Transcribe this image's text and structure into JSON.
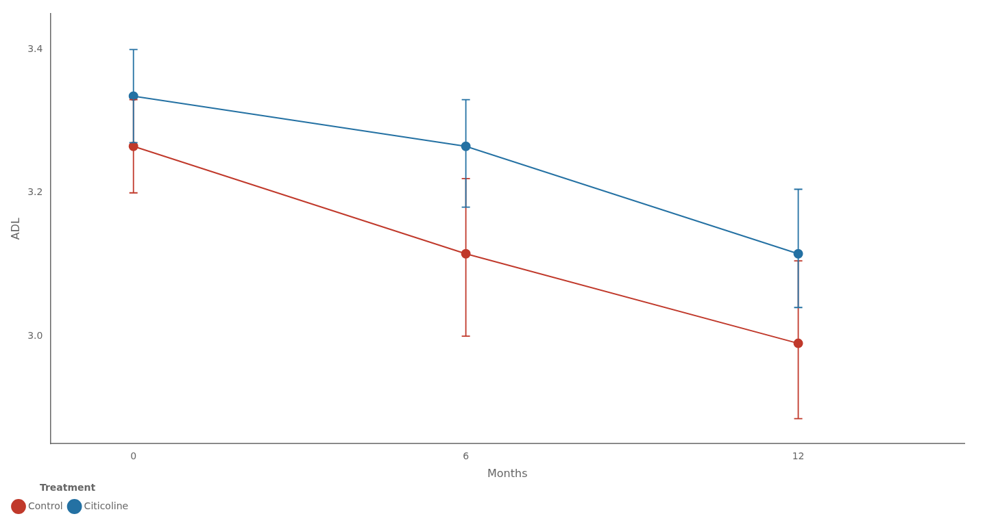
{
  "chart_data": {
    "type": "line",
    "xlabel": "Months",
    "ylabel": "ADL",
    "x": [
      0,
      6,
      12
    ],
    "series": [
      {
        "name": "Control",
        "color": "#C0392B",
        "values": [
          3.265,
          3.115,
          2.99
        ],
        "error_upper": [
          0.065,
          0.105,
          0.115
        ],
        "error_lower": [
          0.065,
          0.115,
          0.105
        ]
      },
      {
        "name": "Citicoline",
        "color": "#2471A3",
        "values": [
          3.335,
          3.265,
          3.115
        ],
        "error_upper": [
          0.065,
          0.065,
          0.09
        ],
        "error_lower": [
          0.065,
          0.085,
          0.075
        ]
      }
    ],
    "xlim": [
      -1.5,
      15
    ],
    "ylim": [
      2.85,
      3.45
    ],
    "xticks": [
      0,
      6,
      12
    ],
    "yticks": [
      {
        "value": 3,
        "label": "3.0"
      },
      3.2,
      3.4
    ],
    "legend_title": "Treatment",
    "legend": "lower left",
    "marker": "circle",
    "grid": false
  }
}
